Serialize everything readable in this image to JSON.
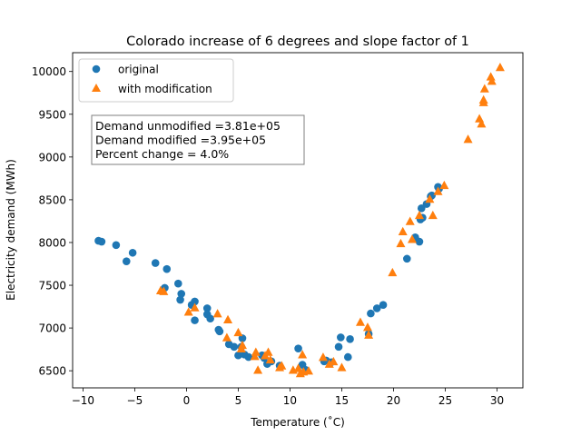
{
  "chart_data": {
    "type": "scatter",
    "title": "Colorado increase of 6 degrees and slope factor of 1",
    "xlabel": "Temperature (˚C)",
    "ylabel": "Electricity demand (MWh)",
    "xlim": [
      -11,
      32.5
    ],
    "ylim": [
      6300,
      10220
    ],
    "xticks": [
      -10,
      -5,
      0,
      5,
      10,
      15,
      20,
      25,
      30
    ],
    "yticks": [
      6500,
      7000,
      7500,
      8000,
      8500,
      9000,
      9500,
      10000
    ],
    "xtick_labels": [
      "−10",
      "−5",
      "0",
      "5",
      "10",
      "15",
      "20",
      "25",
      "30"
    ],
    "ytick_labels": [
      "6500",
      "7000",
      "7500",
      "8000",
      "8500",
      "9000",
      "9500",
      "10000"
    ],
    "legend_position": "upper-left",
    "annotation": [
      "Demand unmodified =3.81e+05",
      "Demand modified =3.95e+05",
      "Percent change = 4.0%"
    ],
    "series": [
      {
        "name": "original",
        "marker": "circle",
        "color": "#1f77b4",
        "points": [
          [
            -8.5,
            8020
          ],
          [
            -8.2,
            8010
          ],
          [
            -6.8,
            7970
          ],
          [
            -5.8,
            7780
          ],
          [
            -5.2,
            7880
          ],
          [
            -3.0,
            7760
          ],
          [
            -2.1,
            7470
          ],
          [
            -1.9,
            7690
          ],
          [
            -0.8,
            7520
          ],
          [
            -0.6,
            7330
          ],
          [
            -0.5,
            7400
          ],
          [
            0.5,
            7270
          ],
          [
            0.8,
            7310
          ],
          [
            0.8,
            7090
          ],
          [
            2.0,
            7230
          ],
          [
            2.0,
            7160
          ],
          [
            2.3,
            7110
          ],
          [
            3.1,
            6980
          ],
          [
            3.2,
            6960
          ],
          [
            4.1,
            6810
          ],
          [
            4.6,
            6780
          ],
          [
            5.0,
            6680
          ],
          [
            5.3,
            6780
          ],
          [
            5.4,
            6880
          ],
          [
            5.6,
            6690
          ],
          [
            6.0,
            6660
          ],
          [
            7.3,
            6680
          ],
          [
            7.5,
            6650
          ],
          [
            7.8,
            6580
          ],
          [
            8.2,
            6610
          ],
          [
            9.0,
            6560
          ],
          [
            10.8,
            6760
          ],
          [
            11.2,
            6570
          ],
          [
            11.5,
            6510
          ],
          [
            13.3,
            6610
          ],
          [
            13.5,
            6620
          ],
          [
            14.0,
            6600
          ],
          [
            14.7,
            6780
          ],
          [
            14.9,
            6890
          ],
          [
            15.6,
            6660
          ],
          [
            15.8,
            6870
          ],
          [
            17.6,
            6930
          ],
          [
            17.8,
            7170
          ],
          [
            18.4,
            7230
          ],
          [
            19.0,
            7270
          ],
          [
            21.3,
            7810
          ],
          [
            22.1,
            8060
          ],
          [
            22.5,
            8010
          ],
          [
            22.6,
            8270
          ],
          [
            22.7,
            8400
          ],
          [
            22.8,
            8290
          ],
          [
            23.2,
            8450
          ],
          [
            23.6,
            8540
          ],
          [
            24.3,
            8650
          ],
          [
            24.4,
            8630
          ],
          [
            23.7,
            8550
          ]
        ]
      },
      {
        "name": "with modification",
        "marker": "triangle",
        "color": "#ff7f0e",
        "points": [
          [
            -2.5,
            7440
          ],
          [
            -2.2,
            7430
          ],
          [
            0.2,
            7190
          ],
          [
            0.8,
            7240
          ],
          [
            3.0,
            7170
          ],
          [
            4.0,
            7100
          ],
          [
            3.9,
            6890
          ],
          [
            5.0,
            6950
          ],
          [
            5.4,
            6800
          ],
          [
            5.3,
            6760
          ],
          [
            6.6,
            6670
          ],
          [
            6.7,
            6720
          ],
          [
            6.9,
            6510
          ],
          [
            7.6,
            6680
          ],
          [
            7.9,
            6720
          ],
          [
            8.1,
            6630
          ],
          [
            9.2,
            6560
          ],
          [
            9.0,
            6540
          ],
          [
            10.3,
            6510
          ],
          [
            10.8,
            6530
          ],
          [
            11.0,
            6470
          ],
          [
            11.3,
            6490
          ],
          [
            11.2,
            6690
          ],
          [
            11.8,
            6500
          ],
          [
            13.2,
            6660
          ],
          [
            13.8,
            6580
          ],
          [
            14.2,
            6610
          ],
          [
            15.0,
            6540
          ],
          [
            16.8,
            7070
          ],
          [
            17.5,
            7010
          ],
          [
            17.6,
            6920
          ],
          [
            19.9,
            7650
          ],
          [
            20.7,
            7990
          ],
          [
            20.9,
            8130
          ],
          [
            21.6,
            8250
          ],
          [
            21.8,
            8040
          ],
          [
            22.5,
            8320
          ],
          [
            23.8,
            8320
          ],
          [
            24.3,
            8600
          ],
          [
            24.9,
            8670
          ],
          [
            23.5,
            8510
          ],
          [
            27.2,
            9210
          ],
          [
            28.3,
            9450
          ],
          [
            28.5,
            9390
          ],
          [
            28.7,
            9670
          ],
          [
            28.7,
            9640
          ],
          [
            28.8,
            9800
          ],
          [
            29.4,
            9940
          ],
          [
            29.5,
            9890
          ],
          [
            30.3,
            10050
          ]
        ]
      }
    ]
  }
}
